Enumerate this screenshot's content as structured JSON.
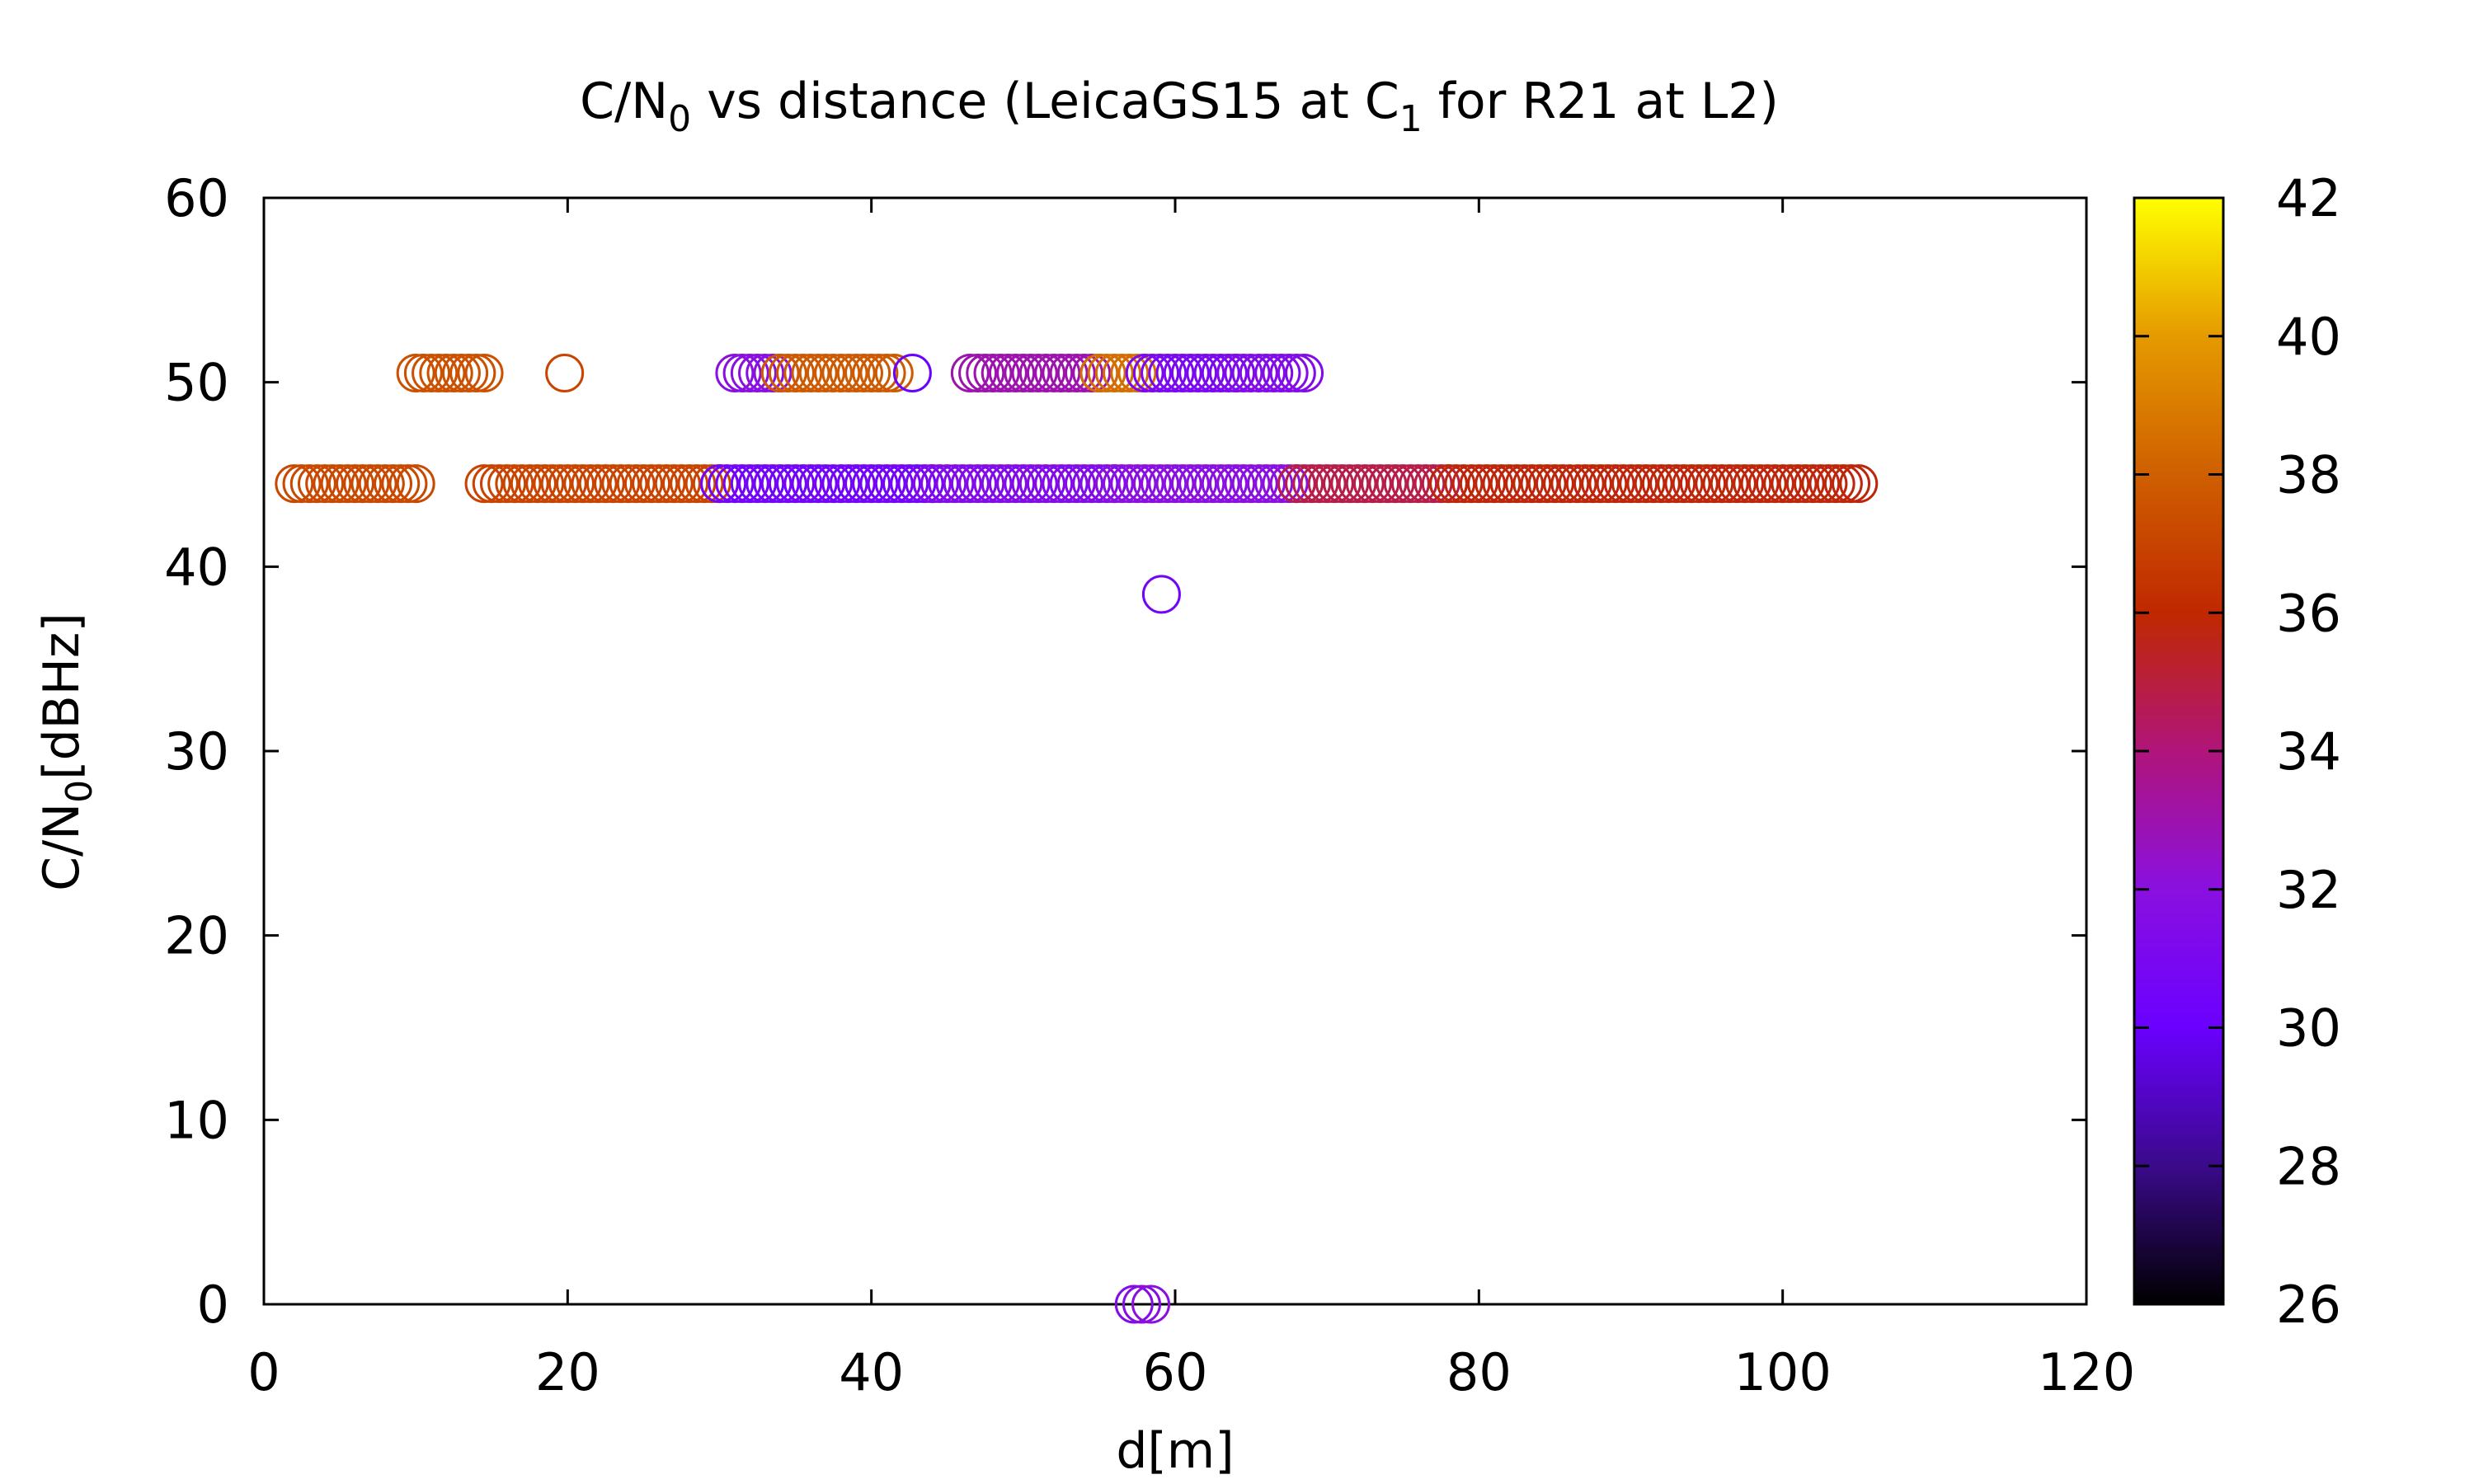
{
  "chart_data": {
    "type": "scatter",
    "title_main": "C/N",
    "title_sub": "0",
    "title_mid": " vs distance (LeicaGS15 at C",
    "title_sub2": "1",
    "title_end": " for R21 at L2)",
    "xlabel": "d[m]",
    "ylabel_main": "C/N",
    "ylabel_sub": "0",
    "ylabel_end": "[dBHz]",
    "xlim": [
      0,
      120
    ],
    "ylim": [
      0,
      60
    ],
    "xticks": [
      "0",
      "20",
      "40",
      "60",
      "80",
      "100",
      "120"
    ],
    "yticks": [
      "0",
      "10",
      "20",
      "30",
      "40",
      "50",
      "60"
    ],
    "colorbar": {
      "range": [
        26,
        42
      ],
      "ticks": [
        "26",
        "28",
        "30",
        "32",
        "34",
        "36",
        "38",
        "40",
        "42"
      ],
      "palette": [
        "#000000",
        "#3a0a8a",
        "#6a00ff",
        "#8a10e0",
        "#b0157a",
        "#c02800",
        "#cf5f00",
        "#e59a00",
        "#ffff00"
      ]
    },
    "marker": "open-circle",
    "segments": [
      {
        "y": 44.5,
        "x_start": 2,
        "x_end": 10,
        "step": 0.5,
        "c": 37.2
      },
      {
        "y": 44.5,
        "x_start": 14.5,
        "x_end": 30,
        "step": 0.5,
        "c": 37.0
      },
      {
        "y": 44.5,
        "x_start": 30,
        "x_end": 44,
        "step": 0.5,
        "c": 30.5
      },
      {
        "y": 44.5,
        "x_start": 44,
        "x_end": 56,
        "step": 0.5,
        "c": 31.5
      },
      {
        "y": 44.5,
        "x_start": 56,
        "x_end": 68,
        "step": 0.5,
        "c": 32.0
      },
      {
        "y": 44.5,
        "x_start": 68,
        "x_end": 78,
        "step": 0.5,
        "c": 34.8
      },
      {
        "y": 44.5,
        "x_start": 78,
        "x_end": 105,
        "step": 0.5,
        "c": 35.8
      },
      {
        "y": 50.5,
        "x_start": 10,
        "x_end": 14.5,
        "step": 0.5,
        "c": 37.5
      },
      {
        "y": 50.5,
        "x_start": 31,
        "x_end": 34,
        "step": 0.5,
        "c": 32.0
      },
      {
        "y": 50.5,
        "x_start": 34,
        "x_end": 41.5,
        "step": 0.5,
        "c": 37.8
      },
      {
        "y": 50.5,
        "x_start": 46.5,
        "x_end": 55,
        "step": 0.5,
        "c": 33.0
      },
      {
        "y": 50.5,
        "x_start": 55,
        "x_end": 58,
        "step": 0.5,
        "c": 38.5
      },
      {
        "y": 50.5,
        "x_start": 58,
        "x_end": 64,
        "step": 0.5,
        "c": 31.0
      },
      {
        "y": 50.5,
        "x_start": 64,
        "x_end": 68.5,
        "step": 0.5,
        "c": 31.5
      }
    ],
    "points": [
      {
        "x": 19.8,
        "y": 50.5,
        "c": 37.0
      },
      {
        "x": 42.7,
        "y": 50.5,
        "c": 30.0
      },
      {
        "x": 59.1,
        "y": 38.5,
        "c": 30.5
      },
      {
        "x": 57.3,
        "y": 0,
        "c": 31.5
      },
      {
        "x": 57.8,
        "y": 0,
        "c": 31.8
      },
      {
        "x": 58.4,
        "y": 0,
        "c": 32.0
      }
    ]
  }
}
